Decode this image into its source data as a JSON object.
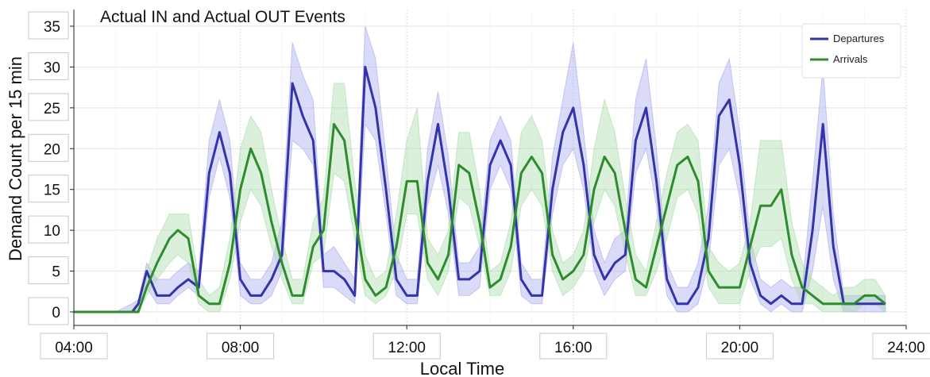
{
  "chart_data": {
    "type": "line",
    "title": "Actual IN and Actual OUT Events",
    "xlabel": "Local Time",
    "ylabel": "Demand Count per 15 min",
    "xlim": [
      4.0,
      24.0
    ],
    "ylim": [
      0,
      35
    ],
    "xticks": [
      {
        "value": 4,
        "label": "04:00"
      },
      {
        "value": 8,
        "label": "08:00"
      },
      {
        "value": 12,
        "label": "12:00"
      },
      {
        "value": 16,
        "label": "16:00"
      },
      {
        "value": 20,
        "label": "20:00"
      },
      {
        "value": 24,
        "label": "24:00"
      }
    ],
    "yticks": [
      0,
      5,
      10,
      15,
      20,
      25,
      30,
      35
    ],
    "grid": true,
    "legend_position": "top-right",
    "series": [
      {
        "name": "Departures",
        "color": "#3333aa",
        "band_color": "#a8a8f0",
        "x": [
          4.0,
          4.5,
          5.0,
          5.4,
          5.55,
          5.75,
          6.0,
          6.3,
          6.5,
          6.75,
          7.0,
          7.25,
          7.5,
          7.75,
          8.0,
          8.25,
          8.5,
          8.75,
          9.0,
          9.25,
          9.5,
          9.75,
          10.0,
          10.25,
          10.5,
          10.75,
          11.0,
          11.25,
          11.5,
          11.75,
          12.0,
          12.25,
          12.5,
          12.75,
          13.0,
          13.25,
          13.5,
          13.75,
          14.0,
          14.25,
          14.5,
          14.75,
          15.0,
          15.25,
          15.5,
          15.75,
          16.0,
          16.25,
          16.5,
          16.75,
          17.0,
          17.25,
          17.5,
          17.75,
          18.0,
          18.25,
          18.5,
          18.75,
          19.0,
          19.25,
          19.5,
          19.75,
          20.0,
          20.25,
          20.5,
          20.75,
          21.0,
          21.25,
          21.5,
          21.75,
          22.0,
          22.25,
          22.5,
          22.75,
          23.0,
          23.25,
          23.5
        ],
        "values": [
          0,
          0,
          0,
          0,
          1,
          5,
          2,
          2,
          3,
          4,
          3,
          17,
          22,
          17,
          4,
          2,
          2,
          4,
          7,
          28,
          24,
          21,
          5,
          5,
          4,
          2,
          30,
          25,
          15,
          4,
          2,
          2,
          16,
          23,
          15,
          4,
          4,
          5,
          18,
          21,
          18,
          4,
          2,
          2,
          15,
          22,
          25,
          18,
          7,
          4,
          6,
          7,
          21,
          25,
          16,
          4,
          1,
          1,
          3,
          9,
          24,
          26,
          18,
          6,
          2,
          1,
          2,
          1,
          1,
          10,
          23,
          8,
          1,
          1,
          1,
          1,
          1
        ],
        "lower": [
          0,
          0,
          0,
          0,
          0,
          3,
          1,
          1,
          2,
          3,
          2,
          14,
          19,
          14,
          2,
          1,
          1,
          2,
          5,
          21,
          20,
          18,
          3,
          3,
          2,
          1,
          23,
          21,
          12,
          2,
          1,
          1,
          13,
          18,
          12,
          2,
          2,
          3,
          15,
          18,
          15,
          2,
          1,
          1,
          12,
          18,
          20,
          15,
          5,
          2,
          4,
          5,
          17,
          20,
          13,
          2,
          0,
          0,
          1,
          6,
          18,
          20,
          14,
          4,
          1,
          0,
          1,
          0,
          0,
          5,
          13,
          4,
          0,
          0,
          0,
          0,
          0
        ],
        "upper": [
          0,
          0,
          0,
          1,
          1.5,
          6,
          4,
          4,
          5,
          6,
          5,
          21,
          26,
          21,
          6,
          4,
          4,
          6,
          11,
          33,
          29,
          26,
          7,
          8,
          6,
          4,
          35,
          31,
          19,
          7,
          4,
          4,
          20,
          27,
          19,
          6,
          6,
          8,
          21,
          24,
          21,
          6,
          4,
          4,
          19,
          26,
          33,
          22,
          10,
          6,
          9,
          10,
          26,
          31,
          20,
          6,
          3,
          3,
          6,
          13,
          28,
          31,
          22,
          9,
          4,
          3,
          4,
          3,
          3,
          16,
          30,
          12,
          2,
          2,
          2,
          2,
          2
        ]
      },
      {
        "name": "Arrivals",
        "color": "#2e8b2e",
        "band_color": "#a8dca8",
        "x": [
          4.0,
          4.5,
          5.0,
          5.4,
          5.55,
          5.75,
          6.0,
          6.3,
          6.5,
          6.75,
          7.0,
          7.25,
          7.5,
          7.75,
          8.0,
          8.25,
          8.5,
          8.75,
          9.0,
          9.25,
          9.5,
          9.75,
          10.0,
          10.25,
          10.5,
          10.75,
          11.0,
          11.25,
          11.5,
          11.75,
          12.0,
          12.25,
          12.5,
          12.75,
          13.0,
          13.25,
          13.5,
          13.75,
          14.0,
          14.25,
          14.5,
          14.75,
          15.0,
          15.25,
          15.5,
          15.75,
          16.0,
          16.25,
          16.5,
          16.75,
          17.0,
          17.25,
          17.5,
          17.75,
          18.0,
          18.25,
          18.5,
          18.75,
          19.0,
          19.25,
          19.5,
          19.75,
          20.0,
          20.25,
          20.5,
          20.75,
          21.0,
          21.25,
          21.5,
          21.75,
          22.0,
          22.25,
          22.5,
          22.75,
          23.0,
          23.25,
          23.5
        ],
        "values": [
          0,
          0,
          0,
          0,
          0,
          3,
          6,
          9,
          10,
          9,
          2,
          1,
          1,
          6,
          15,
          20,
          17,
          11,
          6,
          2,
          2,
          8,
          10,
          23,
          21,
          12,
          4,
          2,
          3,
          8,
          16,
          16,
          6,
          4,
          7,
          18,
          17,
          11,
          3,
          4,
          8,
          17,
          19,
          17,
          7,
          4,
          5,
          7,
          15,
          19,
          17,
          10,
          4,
          3,
          8,
          13,
          18,
          19,
          16,
          5,
          3,
          3,
          3,
          8,
          13,
          13,
          15,
          7,
          3,
          2,
          1,
          1,
          1,
          1,
          2,
          2,
          1
        ],
        "lower": [
          0,
          0,
          0,
          0,
          0,
          2,
          4,
          6,
          7,
          6,
          1,
          0,
          0,
          4,
          11,
          15,
          13,
          8,
          4,
          1,
          1,
          6,
          7,
          17,
          16,
          9,
          2,
          1,
          2,
          5,
          12,
          12,
          4,
          2,
          5,
          14,
          13,
          8,
          2,
          2,
          5,
          13,
          15,
          13,
          5,
          2,
          3,
          5,
          11,
          15,
          13,
          7,
          2,
          2,
          5,
          9,
          14,
          15,
          12,
          3,
          1,
          1,
          1,
          5,
          8,
          8,
          9,
          4,
          1,
          1,
          0,
          0,
          0,
          0,
          1,
          1,
          0
        ],
        "upper": [
          0,
          0,
          0,
          0,
          1,
          5,
          9,
          12,
          12,
          12,
          4,
          2,
          3,
          9,
          20,
          24,
          22,
          15,
          9,
          4,
          4,
          11,
          14,
          28,
          28,
          16,
          7,
          4,
          5,
          12,
          21,
          25,
          9,
          7,
          10,
          22,
          22,
          15,
          5,
          6,
          11,
          22,
          24,
          21,
          10,
          6,
          7,
          10,
          20,
          26,
          22,
          14,
          7,
          5,
          11,
          17,
          22,
          23,
          21,
          8,
          6,
          5,
          6,
          11,
          21,
          21,
          21,
          11,
          6,
          4,
          3,
          2,
          3,
          3,
          4,
          4,
          2
        ]
      }
    ]
  }
}
